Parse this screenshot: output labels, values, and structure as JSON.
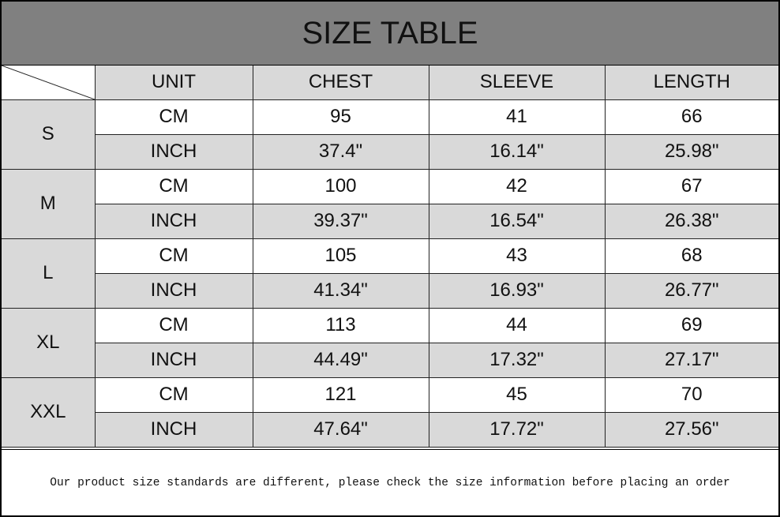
{
  "title": "SIZE TABLE",
  "headers": [
    "UNIT",
    "CHEST",
    "SLEEVE",
    "LENGTH"
  ],
  "rows": [
    {
      "size": "S",
      "cm": [
        "CM",
        "95",
        "41",
        "66"
      ],
      "inch": [
        "INCH",
        "37.4\"",
        "16.14\"",
        "25.98\""
      ]
    },
    {
      "size": "M",
      "cm": [
        "CM",
        "100",
        "42",
        "67"
      ],
      "inch": [
        "INCH",
        "39.37\"",
        "16.54\"",
        "26.38\""
      ]
    },
    {
      "size": "L",
      "cm": [
        "CM",
        "105",
        "43",
        "68"
      ],
      "inch": [
        "INCH",
        "41.34\"",
        "16.93\"",
        "26.77\""
      ]
    },
    {
      "size": "XL",
      "cm": [
        "CM",
        "113",
        "44",
        "69"
      ],
      "inch": [
        "INCH",
        "44.49\"",
        "17.32\"",
        "27.17\""
      ]
    },
    {
      "size": "XXL",
      "cm": [
        "CM",
        "121",
        "45",
        "70"
      ],
      "inch": [
        "INCH",
        "47.64\"",
        "17.72\"",
        "27.56\""
      ]
    }
  ],
  "footer": "Our product size standards are different, please check the size information before placing an order",
  "colors": {
    "title_bg": "#808080",
    "header_bg": "#d9d9d9",
    "inch_row_bg": "#d9d9d9",
    "cm_row_bg": "#ffffff"
  }
}
